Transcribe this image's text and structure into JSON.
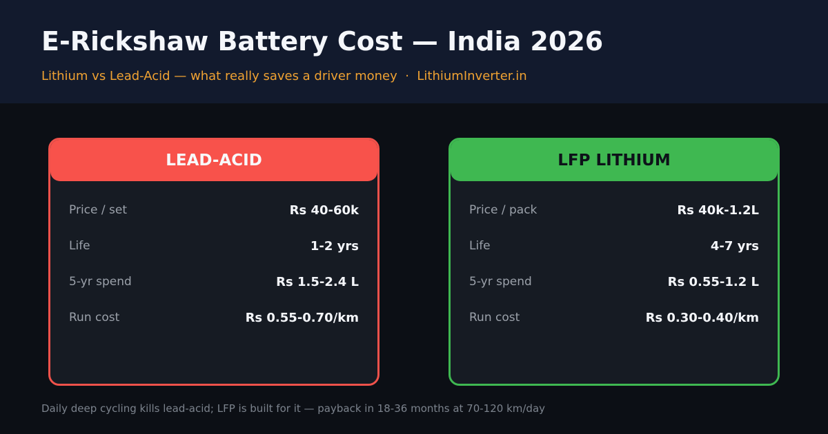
{
  "header": {
    "title": "E-Rickshaw Battery Cost — India 2026",
    "subtitle": "Lithium vs Lead-Acid — what really saves a driver money  ·  LithiumInverter.in"
  },
  "cards": [
    {
      "title": "LEAD-ACID",
      "rows": [
        {
          "label": "Price / set",
          "value": "Rs 40-60k"
        },
        {
          "label": "Life",
          "value": "1-2 yrs"
        },
        {
          "label": "5-yr spend",
          "value": "Rs 1.5-2.4 L"
        },
        {
          "label": "Run cost",
          "value": "Rs 0.55-0.70/km"
        }
      ]
    },
    {
      "title": "LFP LITHIUM",
      "rows": [
        {
          "label": "Price / pack",
          "value": "Rs 40k-1.2L"
        },
        {
          "label": "Life",
          "value": "4-7 yrs"
        },
        {
          "label": "5-yr spend",
          "value": "Rs 0.55-1.2 L"
        },
        {
          "label": "Run cost",
          "value": "Rs 0.30-0.40/km"
        }
      ]
    }
  ],
  "footer": "Daily deep cycling kills lead-acid; LFP is built for it — payback in 18-36 months at 70-120 km/day"
}
